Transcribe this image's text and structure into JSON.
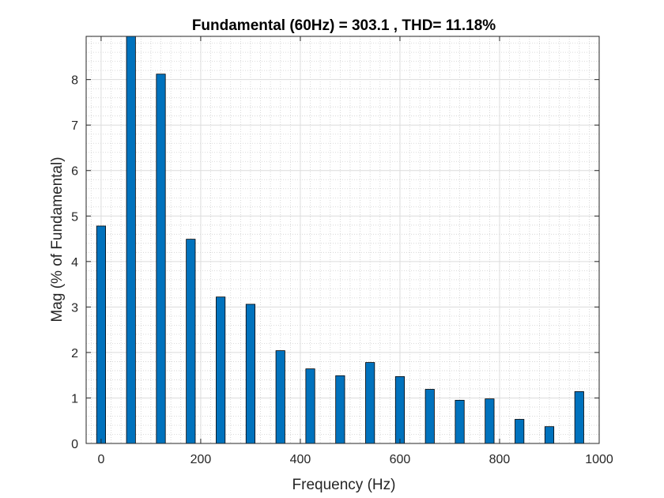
{
  "chart_data": {
    "type": "bar",
    "title": "Fundamental (60Hz) = 303.1 , THD= 11.18%",
    "xlabel": "Frequency (Hz)",
    "ylabel": "Mag (% of Fundamental)",
    "xlim": [
      -30,
      1000
    ],
    "ylim": [
      0,
      8.95
    ],
    "xticks": [
      0,
      200,
      400,
      600,
      800,
      1000
    ],
    "yticks": [
      0,
      1,
      2,
      3,
      4,
      5,
      6,
      7,
      8
    ],
    "xtick_labels": [
      "0",
      "200",
      "400",
      "600",
      "800",
      "1000"
    ],
    "ytick_labels": [
      "0",
      "1",
      "2",
      "3",
      "4",
      "5",
      "6",
      "7",
      "8"
    ],
    "grid": true,
    "minor_grid": true,
    "bar_color": "#0072BD",
    "bar_edge_color": "#000000",
    "x": [
      0,
      60,
      120,
      180,
      240,
      300,
      360,
      420,
      480,
      540,
      600,
      660,
      720,
      780,
      840,
      900,
      960
    ],
    "values": [
      4.78,
      8.95,
      8.12,
      4.49,
      3.22,
      3.06,
      2.04,
      1.64,
      1.49,
      1.78,
      1.47,
      1.19,
      0.95,
      0.98,
      0.53,
      0.37,
      1.14
    ]
  }
}
